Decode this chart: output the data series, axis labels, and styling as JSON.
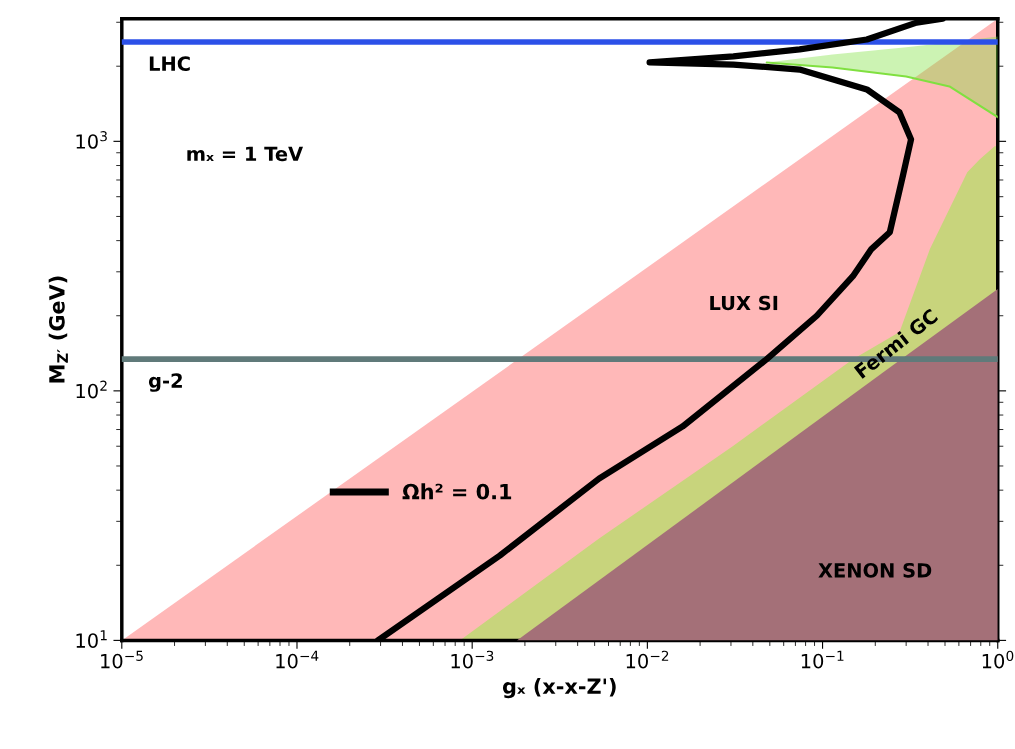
{
  "chart_data": {
    "type": "area",
    "xlabel": "gₓ (x-x-Z')",
    "ylabel": "M$_{Z′}$ (GeV)",
    "xlim": [
      1e-05,
      1
    ],
    "ylim": [
      10,
      3100
    ],
    "log": "xy",
    "xticks": [
      {
        "value": 1e-05,
        "label": "10$^{−5}$"
      },
      {
        "value": 0.0001,
        "label": "10$^{−4}$"
      },
      {
        "value": 0.001,
        "label": "10$^{−3}$"
      },
      {
        "value": 0.01,
        "label": "10$^{−2}$"
      },
      {
        "value": 0.1,
        "label": "10$^{−1}$"
      },
      {
        "value": 1,
        "label": "10$^{0}$"
      }
    ],
    "yticks": [
      {
        "value": 10,
        "label": "10$^{1}$"
      },
      {
        "value": 100,
        "label": "10$^{2}$"
      },
      {
        "value": 1000,
        "label": "10$^{3}$"
      }
    ],
    "grid": false,
    "legend": "bottom left",
    "series": [
      {
        "name": "LUX SI",
        "color": "#ffb8b8",
        "x": [
          1e-05,
          1
        ],
        "values": [
          10,
          3100
        ]
      },
      {
        "name": "Fermi GC",
        "color": "#c8d47c",
        "x": [
          0.00085,
          0.0053,
          0.0307,
          0.149,
          0.275,
          0.41,
          0.67,
          0.79,
          0.96,
          1
        ],
        "values": [
          10,
          25.6,
          60,
          134,
          172,
          370,
          752,
          848,
          955,
          955
        ]
      },
      {
        "type": "line",
        "color": "#80e040",
        "x": [
          0.048,
          0.114,
          0.3,
          0.53,
          1
        ],
        "values": [
          2070,
          1977,
          1820,
          1660,
          1250
        ],
        "lower": [
          2070,
          1977,
          1820,
          1660,
          1250
        ],
        "upper": [
          2070,
          2230,
          2380,
          2490,
          2630
        ]
      },
      {
        "name": "XENON SD",
        "color": "#a47078",
        "x": [
          0.0018,
          0.242,
          1
        ],
        "values": [
          10,
          124,
          256
        ]
      },
      {
        "type": "line",
        "name": "Ωh² = 0.1",
        "color": "#000000",
        "x": [
          0.00029,
          0.00144,
          0.0053,
          0.0159,
          0.048,
          0.0927,
          0.149,
          0.19,
          0.242,
          0.287,
          0.32,
          0.275,
          0.179,
          0.074,
          0.031,
          0.0103,
          0.031,
          0.074,
          0.179,
          0.344,
          0.485
        ],
        "values": [
          10,
          21.9,
          44.5,
          72,
          134,
          200,
          288,
          370,
          432,
          725,
          1018,
          1306,
          1615,
          1940,
          2030,
          2070,
          2190,
          2335,
          2560,
          2990,
          3100
        ]
      }
    ],
    "ref_lines": [
      {
        "axis": "y",
        "value": 2500,
        "label": "LHC",
        "color": "#2c50e8"
      },
      {
        "axis": "y",
        "value": 134,
        "label": "g-2",
        "color": "#607a7a"
      }
    ],
    "annotations": [
      "mₓ = 1 TeV"
    ]
  }
}
